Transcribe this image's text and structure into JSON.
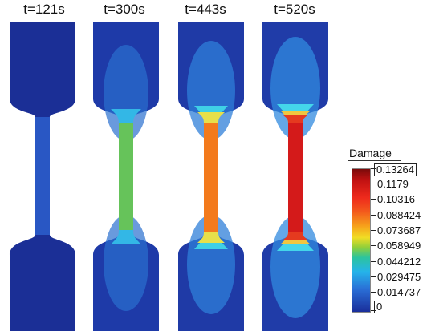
{
  "frames": [
    {
      "title": "t=121s",
      "damage_level": 0.015
    },
    {
      "title": "t=300s",
      "damage_level": 0.055
    },
    {
      "title": "t=443s",
      "damage_level": 0.105
    },
    {
      "title": "t=520s",
      "damage_level": 0.13264
    }
  ],
  "legend": {
    "title": "Damage",
    "ticks": [
      "0.13264",
      "0.1179",
      "0.10316",
      "0.088424",
      "0.073687",
      "0.058949",
      "0.044212",
      "0.029475",
      "0.014737",
      "0"
    ]
  },
  "colors": {
    "background_blue": "#1a2e9b",
    "low_blue": "#2a5fd0",
    "green": "#63c25a",
    "orange": "#f37a1c",
    "red": "#d41a1a"
  }
}
